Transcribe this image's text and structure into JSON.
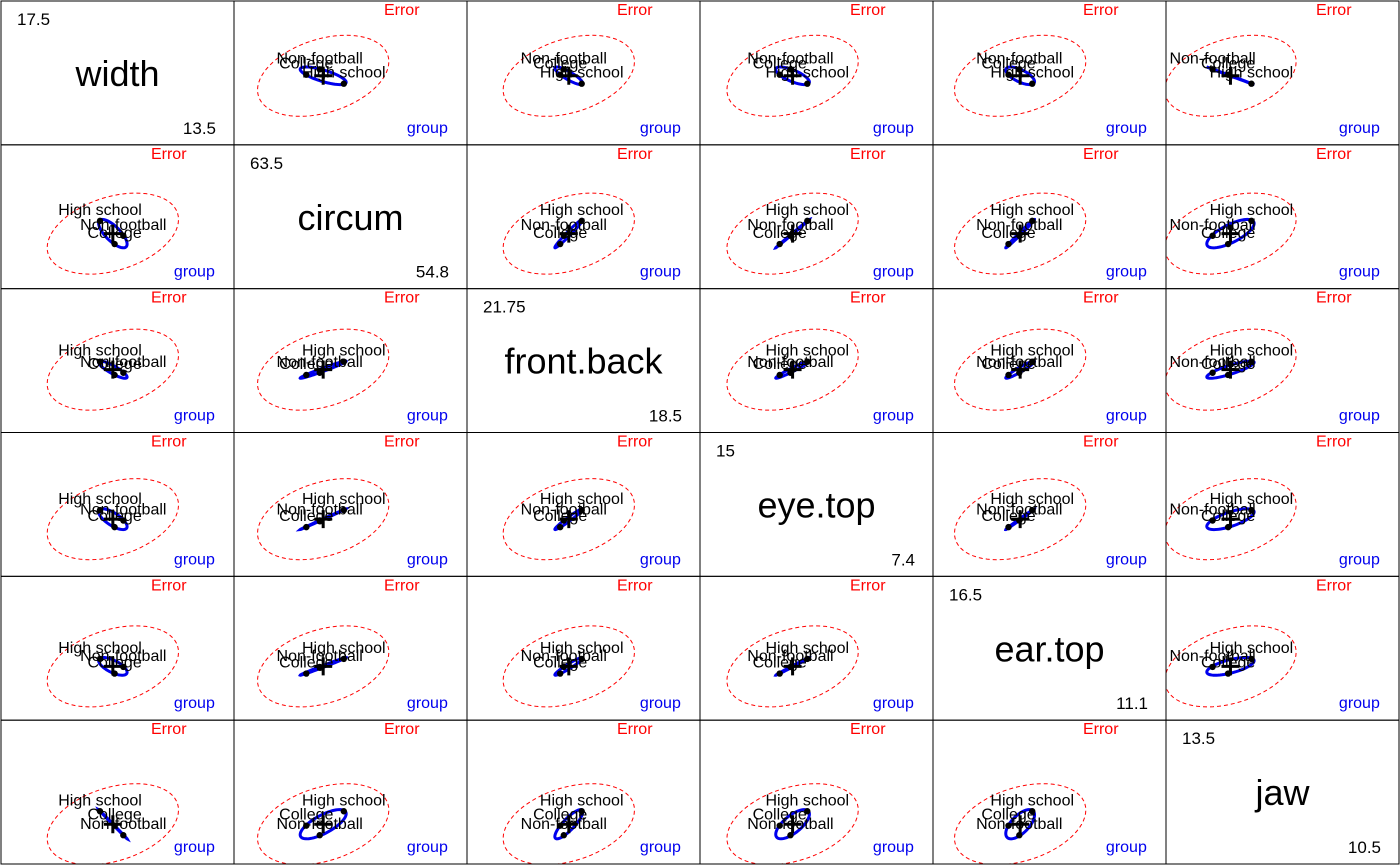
{
  "chart_data": {
    "type": "scatter",
    "plot_kind": "HE pairs plot (hypothesis and error ellipses)",
    "variables": [
      "width",
      "circum",
      "front.back",
      "eye.top",
      "ear.top",
      "jaw"
    ],
    "ranges": {
      "width": [
        13.5,
        17.5
      ],
      "circum": [
        54.8,
        63.5
      ],
      "front.back": [
        18.5,
        21.75
      ],
      "eye.top": [
        7.4,
        15
      ],
      "ear.top": [
        11.1,
        16.5
      ],
      "jaw": [
        10.5,
        13.5
      ]
    },
    "range_labels": {
      "width": [
        "13.5",
        "17.5"
      ],
      "circum": [
        "54.8",
        "63.5"
      ],
      "front.back": [
        "18.5",
        "21.75"
      ],
      "eye.top": [
        "7.4",
        "15"
      ],
      "ear.top": [
        "11.1",
        "16.5"
      ],
      "jaw": [
        "10.5",
        "13.5"
      ]
    },
    "groups": [
      {
        "name": "High school",
        "means": {
          "width": 15.2,
          "circum": 58.9,
          "front.back": 20.1,
          "eye.top": 10.9,
          "ear.top": 13.4,
          "jaw": 11.6
        }
      },
      {
        "name": "College",
        "means": {
          "width": 15.45,
          "circum": 57.5,
          "front.back": 19.8,
          "eye.top": 10.0,
          "ear.top": 12.85,
          "jaw": 11.3
        }
      },
      {
        "name": "Non-football",
        "means": {
          "width": 15.6,
          "circum": 58.0,
          "front.back": 19.85,
          "eye.top": 10.35,
          "ear.top": 13.1,
          "jaw": 11.1
        }
      }
    ],
    "grand_mean": {
      "width": 15.42,
      "circum": 58.13,
      "front.back": 19.92,
      "eye.top": 10.42,
      "ear.top": 13.12,
      "jaw": 11.33
    },
    "effects": [
      {
        "name": "group",
        "type": "hypothesis",
        "color": "#0000ee"
      },
      {
        "name": "Error",
        "type": "error",
        "color": "#ff0000"
      }
    ]
  }
}
